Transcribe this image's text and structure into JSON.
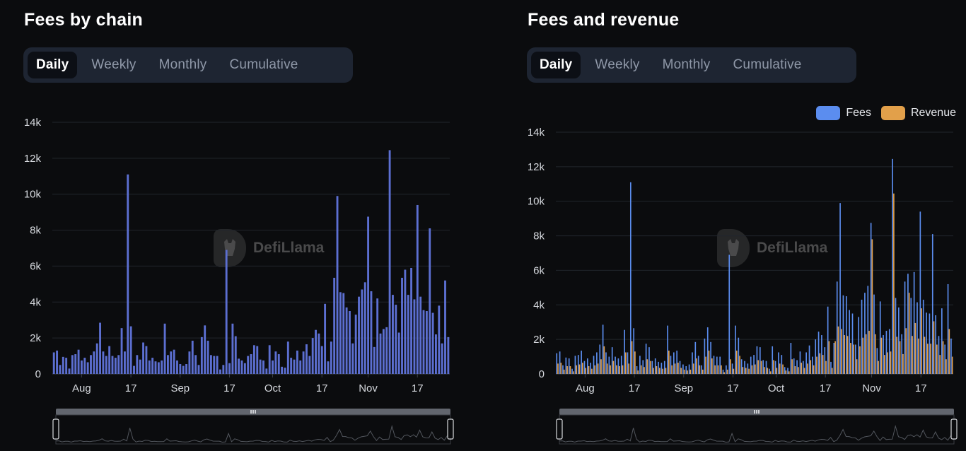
{
  "watermark": "DefiLlama",
  "panels": [
    {
      "title": "Fees by chain",
      "tabs": [
        "Daily",
        "Weekly",
        "Monthly",
        "Cumulative"
      ],
      "active_tab": "Daily"
    },
    {
      "title": "Fees and revenue",
      "tabs": [
        "Daily",
        "Weekly",
        "Monthly",
        "Cumulative"
      ],
      "active_tab": "Daily",
      "legend": [
        {
          "name": "Fees",
          "color": "#5b8def"
        },
        {
          "name": "Revenue",
          "color": "#e2a04a"
        }
      ]
    }
  ],
  "chart_data": [
    {
      "type": "bar",
      "title": "Fees by chain",
      "xlabel": "",
      "ylabel": "",
      "ylim": [
        0,
        14000
      ],
      "yticks": [
        "0",
        "2k",
        "4k",
        "6k",
        "8k",
        "10k",
        "12k",
        "14k"
      ],
      "xtick_labels": [
        "Aug",
        "17",
        "Sep",
        "17",
        "Oct",
        "17",
        "Nov",
        "17"
      ],
      "xtick_indices": [
        9,
        25,
        41,
        57,
        71,
        87,
        102,
        118
      ],
      "grid": true,
      "bar_color": "#5c6fd1",
      "series": [
        {
          "name": "Fees",
          "values": [
            1200,
            1300,
            500,
            950,
            900,
            300,
            1050,
            1100,
            1350,
            750,
            900,
            650,
            1050,
            1250,
            1700,
            2850,
            1250,
            1000,
            1550,
            1000,
            900,
            1050,
            2550,
            1250,
            11100,
            2650,
            450,
            1050,
            800,
            1750,
            1550,
            750,
            900,
            700,
            650,
            750,
            2800,
            1050,
            1250,
            1350,
            750,
            550,
            450,
            550,
            1250,
            1850,
            1050,
            500,
            2050,
            2700,
            1850,
            1050,
            1000,
            1000,
            250,
            500,
            6900,
            600,
            2800,
            2100,
            850,
            750,
            600,
            1000,
            1100,
            1600,
            1550,
            800,
            750,
            300,
            1600,
            750,
            1250,
            1100,
            400,
            350,
            1800,
            900,
            800,
            1300,
            750,
            1250,
            1650,
            1000,
            2000,
            2450,
            2250,
            1550,
            3900,
            700,
            1800,
            5350,
            9900,
            4550,
            4500,
            3700,
            3500,
            1700,
            3300,
            4300,
            4700,
            5100,
            8750,
            4600,
            1500,
            4200,
            2250,
            2500,
            2600,
            12450,
            4400,
            3850,
            2300,
            5350,
            5800,
            4400,
            5900,
            4150,
            9400,
            4300,
            3550,
            3500,
            8100,
            3400,
            2200,
            3800,
            1700,
            5200,
            2050
          ]
        }
      ]
    },
    {
      "type": "bar",
      "title": "Fees and revenue",
      "xlabel": "",
      "ylabel": "",
      "ylim": [
        0,
        14000
      ],
      "yticks": [
        "0",
        "2k",
        "4k",
        "6k",
        "8k",
        "10k",
        "12k",
        "14k"
      ],
      "xtick_labels": [
        "Aug",
        "17",
        "Sep",
        "17",
        "Oct",
        "17",
        "Nov",
        "17"
      ],
      "xtick_indices": [
        9,
        25,
        41,
        57,
        71,
        87,
        102,
        118
      ],
      "grid": true,
      "legend_position": "top-right",
      "series": [
        {
          "name": "Fees",
          "color": "#5b8def",
          "values": [
            1200,
            1300,
            500,
            950,
            900,
            300,
            1050,
            1100,
            1350,
            750,
            900,
            650,
            1050,
            1250,
            1700,
            2850,
            1250,
            1000,
            1550,
            1000,
            900,
            1050,
            2550,
            1250,
            11100,
            2650,
            450,
            1050,
            800,
            1750,
            1550,
            750,
            900,
            700,
            650,
            750,
            2800,
            1050,
            1250,
            1350,
            750,
            550,
            450,
            550,
            1250,
            1850,
            1050,
            500,
            2050,
            2700,
            1850,
            1050,
            1000,
            1000,
            250,
            500,
            6900,
            600,
            2800,
            2100,
            850,
            750,
            600,
            1000,
            1100,
            1600,
            1550,
            800,
            750,
            300,
            1600,
            750,
            1250,
            1100,
            400,
            350,
            1800,
            900,
            800,
            1300,
            750,
            1250,
            1650,
            1000,
            2000,
            2450,
            2250,
            1550,
            3900,
            700,
            1800,
            5350,
            9900,
            4550,
            4500,
            3700,
            3500,
            1700,
            3300,
            4300,
            4700,
            5100,
            8750,
            4600,
            1500,
            4200,
            2250,
            2500,
            2600,
            12450,
            4400,
            3850,
            2300,
            5350,
            5800,
            4400,
            5900,
            4150,
            9400,
            4300,
            3550,
            3500,
            8100,
            3400,
            2200,
            3800,
            1700,
            5200,
            2050
          ]
        },
        {
          "name": "Revenue",
          "color": "#e2a04a",
          "values": [
            600,
            650,
            250,
            450,
            450,
            150,
            500,
            550,
            650,
            350,
            450,
            300,
            500,
            600,
            850,
            1600,
            600,
            500,
            750,
            500,
            450,
            500,
            1250,
            600,
            1900,
            1300,
            200,
            500,
            400,
            850,
            750,
            350,
            450,
            350,
            300,
            350,
            1350,
            500,
            600,
            650,
            350,
            250,
            200,
            250,
            600,
            900,
            500,
            250,
            1000,
            1350,
            900,
            500,
            500,
            500,
            100,
            250,
            850,
            300,
            1350,
            1050,
            400,
            350,
            300,
            500,
            550,
            800,
            750,
            400,
            350,
            150,
            800,
            350,
            600,
            550,
            200,
            150,
            850,
            450,
            400,
            650,
            350,
            600,
            800,
            500,
            1000,
            1200,
            1100,
            750,
            1900,
            350,
            1900,
            2750,
            2600,
            2250,
            2200,
            1800,
            1700,
            850,
            1600,
            2100,
            2300,
            2500,
            7800,
            2300,
            750,
            2100,
            1100,
            1250,
            1300,
            10450,
            2150,
            1900,
            1150,
            2650,
            4700,
            2200,
            2950,
            2050,
            3800,
            2150,
            1750,
            1750,
            3050,
            1700,
            1100,
            1900,
            850,
            2600,
            1000
          ]
        }
      ]
    }
  ]
}
